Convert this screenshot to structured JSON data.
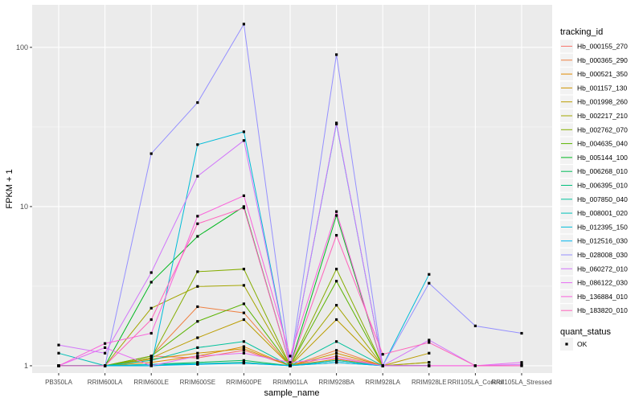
{
  "chart_data": {
    "type": "line",
    "title": "",
    "xlabel": "sample_name",
    "ylabel": "FPKM + 1",
    "y_scale": "log10",
    "ylim": [
      0.9,
      185
    ],
    "y_ticks": [
      {
        "value": 1,
        "label": "1"
      },
      {
        "value": 10,
        "label": "10"
      },
      {
        "value": 100,
        "label": "100"
      }
    ],
    "grid": true,
    "legend_position": "right",
    "categories": [
      "PB350LA",
      "RRIM600LA",
      "RRIM600LE",
      "RRIM600SE",
      "RRIM600PE",
      "RRIM901LA",
      "RRIM928BA",
      "RRIM928LA",
      "RRIM928LE",
      "RRII105LA_Control",
      "RRII105LA_Stressed"
    ],
    "legend_title": "tracking_id",
    "quant_status_title": "quant_status",
    "quant_status_items": [
      "OK"
    ],
    "series": [
      {
        "name": "Hb_000155_270",
        "color": "#F8766D",
        "values": [
          1.0,
          1.0,
          1.15,
          1.12,
          1.25,
          1.0,
          1.15,
          1.0,
          1.0,
          null,
          null
        ]
      },
      {
        "name": "Hb_000365_290",
        "color": "#EE8042",
        "values": [
          1.0,
          1.0,
          1.15,
          2.35,
          2.15,
          1.0,
          1.25,
          1.0,
          1.0,
          null,
          null
        ]
      },
      {
        "name": "Hb_000521_350",
        "color": "#E08B00",
        "values": [
          1.0,
          1.0,
          1.05,
          1.15,
          1.32,
          1.0,
          1.1,
          1.0,
          1.0,
          null,
          null
        ]
      },
      {
        "name": "Hb_001157_130",
        "color": "#CF9400",
        "values": [
          1.0,
          1.0,
          1.1,
          1.2,
          1.28,
          1.0,
          1.2,
          1.0,
          1.05,
          null,
          null
        ]
      },
      {
        "name": "Hb_001998_260",
        "color": "#BB9D00",
        "values": [
          1.0,
          1.0,
          1.12,
          1.5,
          1.95,
          1.0,
          1.95,
          1.0,
          1.2,
          null,
          null
        ]
      },
      {
        "name": "Hb_002217_210",
        "color": "#A3A500",
        "values": [
          1.0,
          1.0,
          2.3,
          3.15,
          3.2,
          1.0,
          2.4,
          1.0,
          1.05,
          null,
          null
        ]
      },
      {
        "name": "Hb_002762_070",
        "color": "#85AD00",
        "values": [
          1.0,
          1.0,
          1.12,
          3.9,
          4.05,
          1.0,
          4.05,
          1.0,
          1.0,
          null,
          null
        ]
      },
      {
        "name": "Hb_004635_040",
        "color": "#5BB300",
        "values": [
          1.0,
          1.0,
          1.15,
          1.9,
          2.45,
          1.0,
          3.4,
          1.0,
          1.0,
          null,
          null
        ]
      },
      {
        "name": "Hb_005144_100",
        "color": "#00B81F",
        "values": [
          1.0,
          1.0,
          3.35,
          6.5,
          10.0,
          1.0,
          8.8,
          1.0,
          1.0,
          null,
          null
        ]
      },
      {
        "name": "Hb_006268_010",
        "color": "#00BC59",
        "values": [
          1.0,
          1.0,
          1.02,
          1.05,
          1.08,
          1.0,
          1.08,
          1.0,
          1.0,
          null,
          null
        ]
      },
      {
        "name": "Hb_006395_010",
        "color": "#00BF7D",
        "values": [
          1.0,
          1.0,
          1.0,
          1.03,
          1.05,
          1.0,
          1.05,
          1.0,
          1.0,
          null,
          null
        ]
      },
      {
        "name": "Hb_007850_040",
        "color": "#00C19C",
        "values": [
          1.0,
          1.0,
          1.08,
          1.3,
          1.42,
          1.0,
          1.42,
          1.0,
          1.0,
          null,
          null
        ]
      },
      {
        "name": "Hb_008001_020",
        "color": "#00C0B8",
        "values": [
          1.2,
          1.0,
          1.02,
          1.03,
          1.04,
          1.0,
          1.08,
          1.0,
          1.0,
          null,
          null
        ]
      },
      {
        "name": "Hb_012395_150",
        "color": "#00BCD8",
        "values": [
          1.0,
          1.0,
          1.0,
          24.5,
          29.5,
          1.0,
          33.0,
          1.0,
          3.75,
          null,
          null
        ]
      },
      {
        "name": "Hb_012516_030",
        "color": "#00B5EE",
        "values": [
          1.0,
          1.0,
          1.0,
          1.02,
          1.04,
          1.0,
          1.05,
          1.0,
          1.0,
          null,
          null
        ]
      },
      {
        "name": "Hb_028008_030",
        "color": "#9590FF",
        "values": [
          1.0,
          1.0,
          21.5,
          45.0,
          140.0,
          1.0,
          90.0,
          1.0,
          3.3,
          1.78,
          1.6
        ]
      },
      {
        "name": "Hb_060272_010",
        "color": "#D176FA",
        "values": [
          1.35,
          1.2,
          3.85,
          15.5,
          26.0,
          1.0,
          33.5,
          1.0,
          1.45,
          1.0,
          1.02
        ]
      },
      {
        "name": "Hb_086122_030",
        "color": "#E76BF3",
        "values": [
          1.0,
          1.3,
          1.0,
          1.15,
          1.2,
          1.05,
          1.12,
          1.0,
          1.0,
          1.0,
          1.05
        ]
      },
      {
        "name": "Hb_136884_010",
        "color": "#FA62DB",
        "values": [
          1.0,
          1.38,
          1.6,
          8.7,
          11.7,
          1.15,
          9.3,
          1.0,
          1.0,
          1.0,
          1.0
        ]
      },
      {
        "name": "Hb_183820_010",
        "color": "#FF62BC",
        "values": [
          1.0,
          1.0,
          1.95,
          7.8,
          9.8,
          1.0,
          6.6,
          1.18,
          1.4,
          1.0,
          1.0
        ]
      }
    ]
  }
}
